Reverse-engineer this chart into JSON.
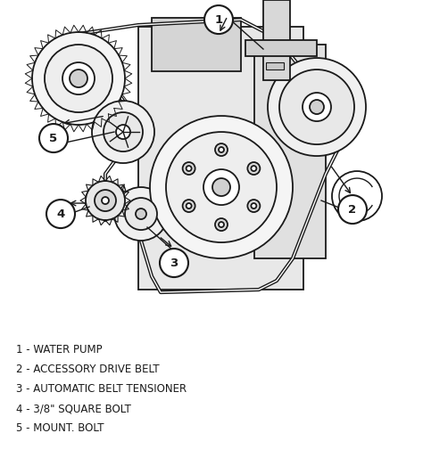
{
  "bg_color": "#ffffff",
  "line_color": "#1a1a1a",
  "legend": [
    "1 - WATER PUMP",
    "2 - ACCESSORY DRIVE BELT",
    "3 - AUTOMATIC BELT TENSIONER",
    "4 - 3/8\" SQUARE BOLT",
    "5 - MOUNT. BOLT"
  ],
  "fig_width": 4.74,
  "fig_height": 5.23,
  "dpi": 100,
  "legend_fontsize": 8.5,
  "label_fontsize": 9.5
}
